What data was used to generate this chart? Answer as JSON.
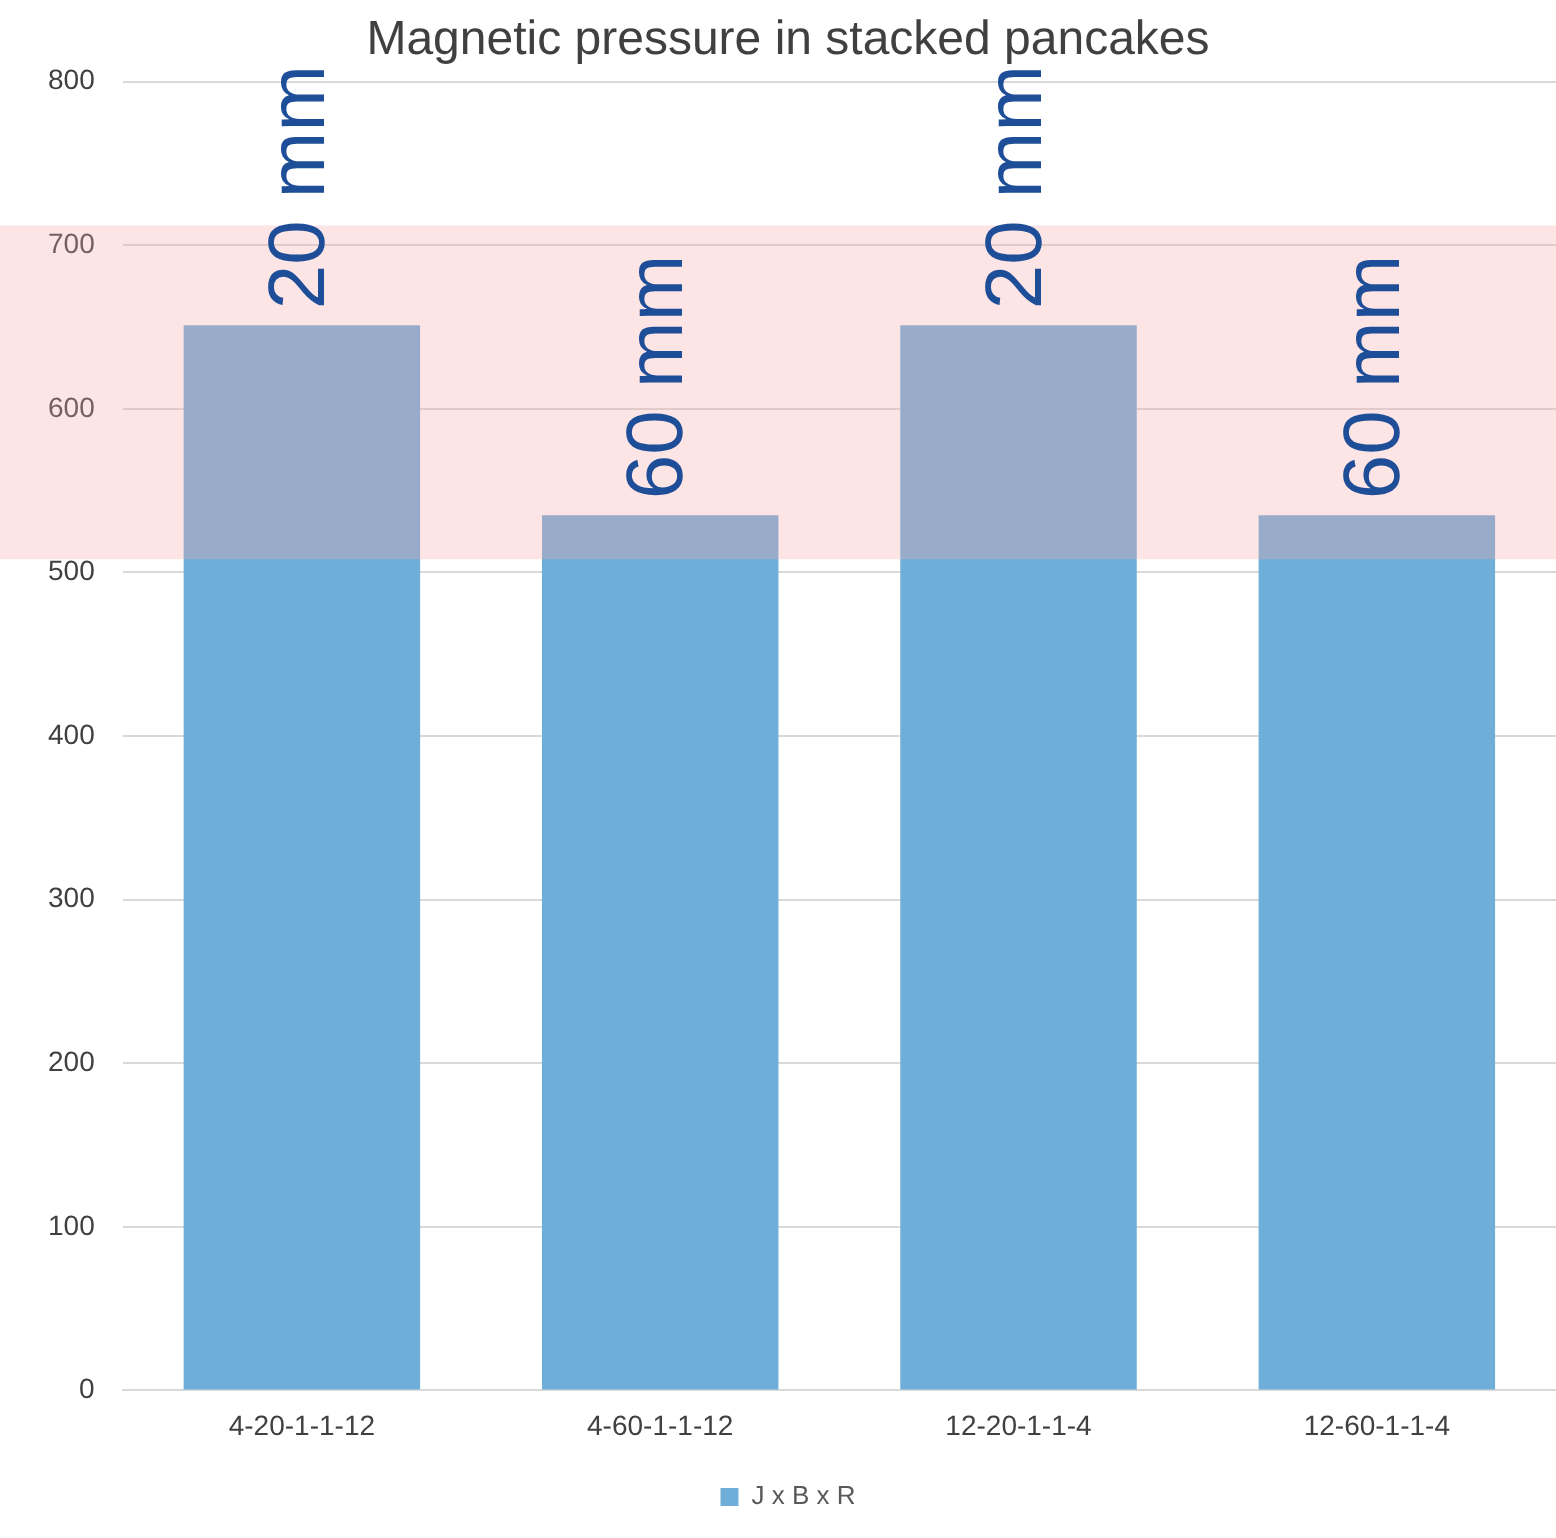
{
  "chart_data": {
    "type": "bar",
    "title": "Magnetic pressure in stacked pancakes",
    "categories": [
      "4-20-1-1-12",
      "4-60-1-1-12",
      "12-20-1-1-4",
      "12-60-1-1-4"
    ],
    "series": [
      {
        "name": "J x B x R",
        "color": "#6faed8",
        "values": [
          651,
          535,
          651,
          535
        ]
      }
    ],
    "ylim": [
      0,
      800
    ],
    "yticks": [
      0,
      100,
      200,
      300,
      400,
      500,
      600,
      700,
      800
    ],
    "grid": "y",
    "legend": "bottom",
    "bands": [
      {
        "axis": "y",
        "from": 508,
        "to": 712,
        "color": "#f7a8a8"
      }
    ],
    "annotations": [
      {
        "text": "20 mm",
        "x": "4-20-1-1-12",
        "y": 651
      },
      {
        "text": "60 mm",
        "x": "4-60-1-1-12",
        "y": 535
      },
      {
        "text": "20 mm",
        "x": "12-20-1-1-4",
        "y": 651
      },
      {
        "text": "60 mm",
        "x": "12-60-1-1-4",
        "y": 535
      }
    ]
  }
}
